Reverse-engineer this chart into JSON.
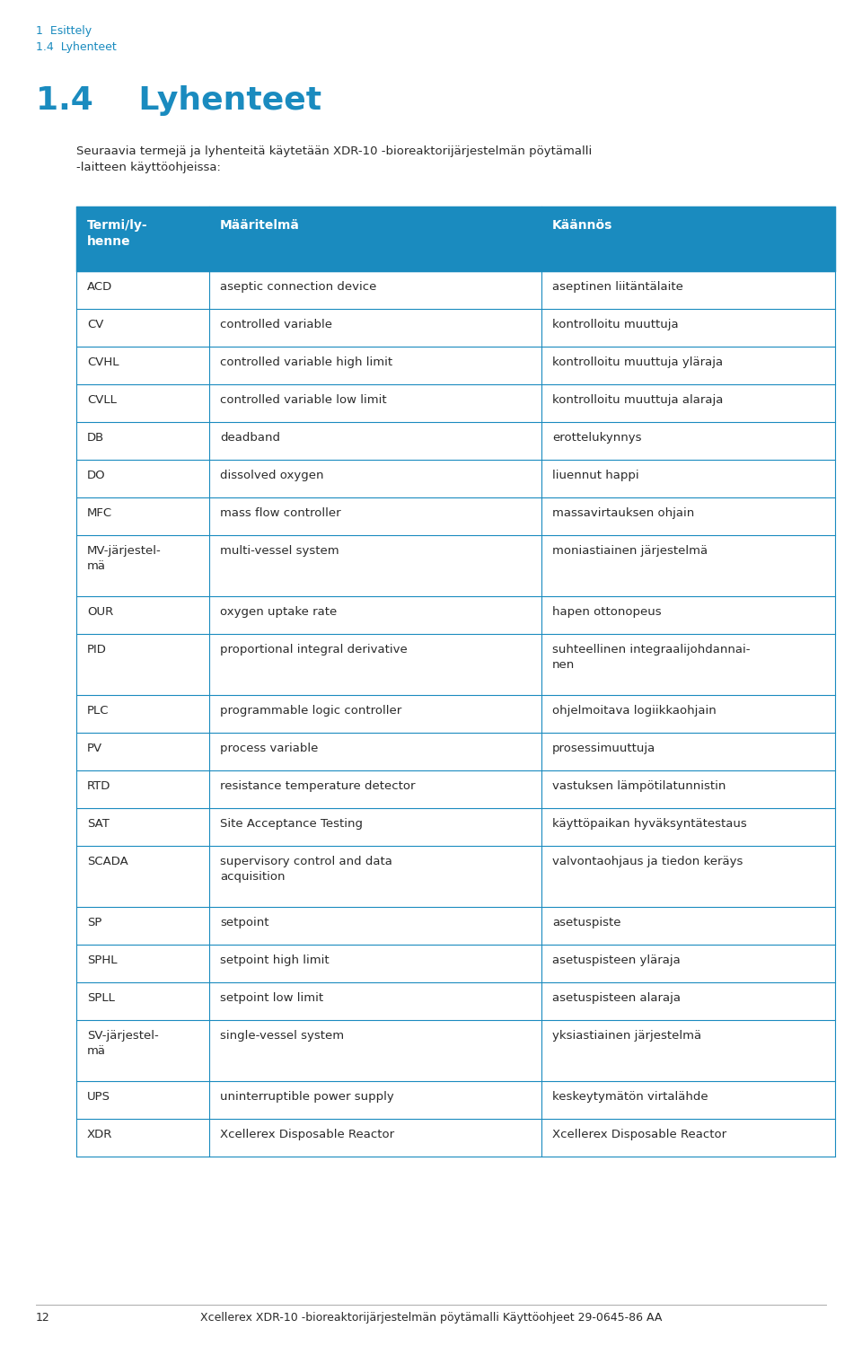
{
  "page_number": "12",
  "breadcrumb_line1": "1  Esittely",
  "breadcrumb_line2": "1.4  Lyhenteet",
  "breadcrumb_color": "#1a8bbf",
  "section_number": "1.4",
  "section_title": "Lyhenteet",
  "section_title_color": "#1a8bbf",
  "intro_text": "Seuraavia termejä ja lyhenteitä käytetään XDR-10 -bioreaktorijärjestelmän pöytämalli\n-laitteen käyttöohjeissa:",
  "footer_text": "Xcellerex XDR-10 -bioreaktorijärjestelmän pöytämalli Käyttöohjeet 29-0645-86 AA",
  "header_bg_color": "#1a8bbf",
  "header_text_color": "#ffffff",
  "border_color": "#1a8bbf",
  "text_color": "#2a2a2a",
  "col_headers": [
    "Termi/ly-\nhenne",
    "Määritelmä",
    "Käännös"
  ],
  "rows": [
    [
      "ACD",
      "aseptic connection device",
      "aseptinen liitäntälaite"
    ],
    [
      "CV",
      "controlled variable",
      "kontrolloitu muuttuja"
    ],
    [
      "CVHL",
      "controlled variable high limit",
      "kontrolloitu muuttuja yläraja"
    ],
    [
      "CVLL",
      "controlled variable low limit",
      "kontrolloitu muuttuja alaraja"
    ],
    [
      "DB",
      "deadband",
      "erottelukynnys"
    ],
    [
      "DO",
      "dissolved oxygen",
      "liuennut happi"
    ],
    [
      "MFC",
      "mass flow controller",
      "massavirtauksen ohjain"
    ],
    [
      "MV-järjestel-\nmä",
      "multi-vessel system",
      "moniastiainen järjestelmä"
    ],
    [
      "OUR",
      "oxygen uptake rate",
      "hapen ottonopeus"
    ],
    [
      "PID",
      "proportional integral derivative",
      "suhteellinen integraalijohdannai-\nnen"
    ],
    [
      "PLC",
      "programmable logic controller",
      "ohjelmoitava logiikkaohjain"
    ],
    [
      "PV",
      "process variable",
      "prosessimuuttuja"
    ],
    [
      "RTD",
      "resistance temperature detector",
      "vastuksen lämpötilatunnistin"
    ],
    [
      "SAT",
      "Site Acceptance Testing",
      "käyttöpaikan hyväksyntätestaus"
    ],
    [
      "SCADA",
      "supervisory control and data\nacquisition",
      "valvontaohjaus ja tiedon keräys"
    ],
    [
      "SP",
      "setpoint",
      "asetuspiste"
    ],
    [
      "SPHL",
      "setpoint high limit",
      "asetuspisteen yläraja"
    ],
    [
      "SPLL",
      "setpoint low limit",
      "asetuspisteen alaraja"
    ],
    [
      "SV-järjestel-\nmä",
      "single-vessel system",
      "yksiastiainen järjestelmä"
    ],
    [
      "UPS",
      "uninterruptible power supply",
      "keskeytymätön virtalähde"
    ],
    [
      "XDR",
      "Xcellerex Disposable Reactor",
      "Xcellerex Disposable Reactor"
    ]
  ]
}
